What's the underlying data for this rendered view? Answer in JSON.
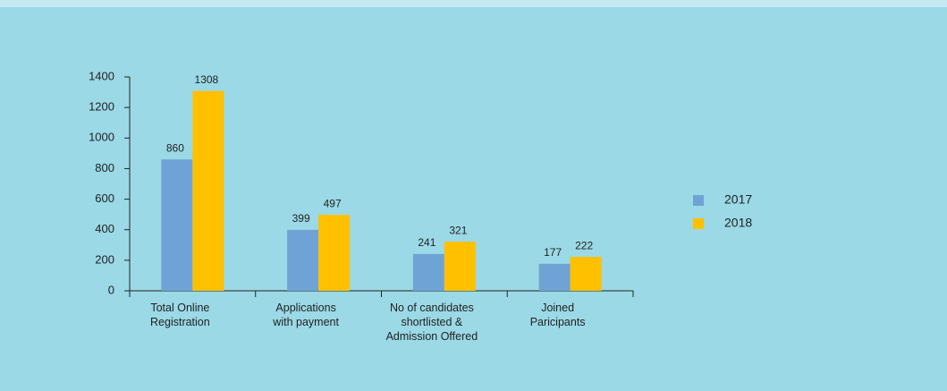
{
  "chart_data": {
    "type": "bar",
    "categories": [
      "Total Online\nRegistration",
      "Applications\nwith payment",
      "No of candidates\nshortlisted &\nAdmission Offered",
      "Joined\nParicipants"
    ],
    "series": [
      {
        "name": "2017",
        "color": "#6fa3d6",
        "values": [
          860,
          399,
          241,
          177
        ]
      },
      {
        "name": "2018",
        "color": "#ffc000",
        "values": [
          1308,
          497,
          321,
          222
        ]
      }
    ],
    "ylim": [
      0,
      1400
    ],
    "yticks": [
      0,
      200,
      400,
      600,
      800,
      1000,
      1200,
      1400
    ],
    "legend": "right"
  }
}
